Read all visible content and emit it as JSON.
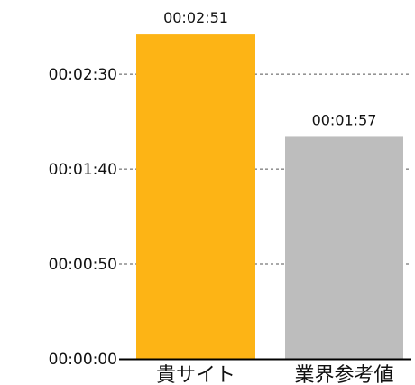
{
  "chart_data": {
    "type": "bar",
    "categories": [
      "貴サイト",
      "業界参考値"
    ],
    "values_seconds": [
      171,
      117
    ],
    "data_labels": [
      "00:02:51",
      "00:01:57"
    ],
    "colors": [
      "#FDB415",
      "#BDBDBD"
    ],
    "y_ticks_seconds": [
      0,
      50,
      100,
      150
    ],
    "y_tick_labels": [
      "00:00:00",
      "00:00:50",
      "00:01:40",
      "00:02:30"
    ],
    "ylim_seconds": [
      0,
      172
    ],
    "grid": true,
    "grid_style": "dashed"
  }
}
